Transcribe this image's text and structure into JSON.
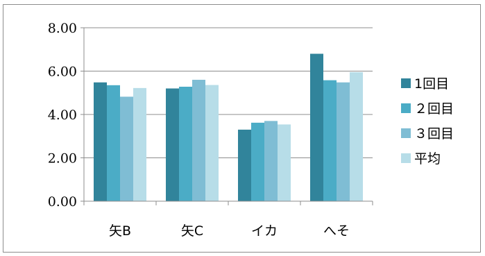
{
  "chart_data": {
    "type": "bar",
    "title": "",
    "xlabel": "",
    "ylabel": "",
    "categories": [
      "矢B",
      "矢C",
      "イカ",
      "へそ"
    ],
    "series": [
      {
        "name": "1回目",
        "color": "#31849B",
        "values": [
          5.48,
          5.2,
          3.3,
          6.8
        ]
      },
      {
        "name": "２回目",
        "color": "#4BACC6",
        "values": [
          5.35,
          5.28,
          3.62,
          5.58
        ]
      },
      {
        "name": "３回目",
        "color": "#7FBDD4",
        "values": [
          4.82,
          5.6,
          3.7,
          5.48
        ]
      },
      {
        "name": "平均",
        "color": "#B7DDE8",
        "values": [
          5.22,
          5.36,
          3.54,
          5.95
        ]
      }
    ],
    "ylim": [
      0,
      8
    ],
    "yticks": [
      "0.00",
      "2.00",
      "4.00",
      "6.00",
      "8.00"
    ],
    "grid": true,
    "legend": "right"
  }
}
